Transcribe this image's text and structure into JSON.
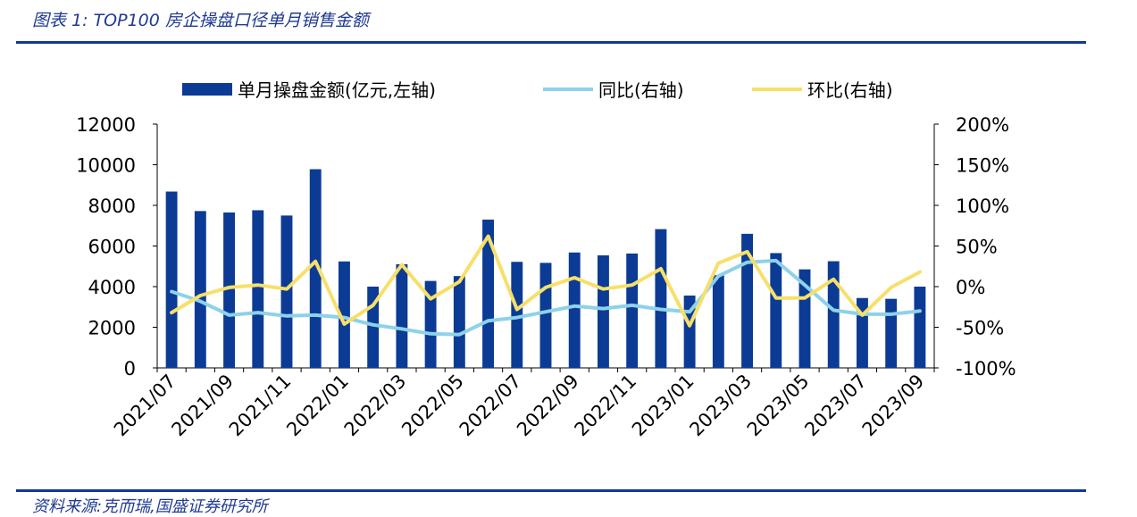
{
  "header": {
    "title": "图表 1:  TOP100 房企操盘口径单月销售金额"
  },
  "footer": {
    "source": "资料来源:克而瑞,国盛证券研究所"
  },
  "colors": {
    "bar": "#0b3b94",
    "yoy": "#8ed1ea",
    "mom": "#f7df6a",
    "rule": "#12389c",
    "title": "#1f3a93"
  },
  "chart_data": {
    "type": "bar",
    "title": "",
    "xlabel": "",
    "ylabel": "",
    "categories": [
      "2021/07",
      "2021/08",
      "2021/09",
      "2021/10",
      "2021/11",
      "2021/12",
      "2022/01",
      "2022/02",
      "2022/03",
      "2022/04",
      "2022/05",
      "2022/06",
      "2022/07",
      "2022/08",
      "2022/09",
      "2022/10",
      "2022/11",
      "2022/12",
      "2023/01",
      "2023/02",
      "2023/03",
      "2023/04",
      "2023/05",
      "2023/06",
      "2023/07",
      "2023/08",
      "2023/09"
    ],
    "tick_labels": [
      "2021/07",
      "2021/09",
      "2021/11",
      "2022/01",
      "2022/03",
      "2022/05",
      "2022/07",
      "2022/09",
      "2022/11",
      "2023/01",
      "2023/03",
      "2023/05",
      "2023/07",
      "2023/09"
    ],
    "ylim_left": [
      0,
      12000
    ],
    "ylim_right": [
      -100,
      200
    ],
    "left_ticks": [
      "0",
      "2000",
      "4000",
      "6000",
      "8000",
      "10000",
      "12000"
    ],
    "right_ticks": [
      "-100%",
      "-50%",
      "0%",
      "50%",
      "100%",
      "150%",
      "200%"
    ],
    "legend_position": "top",
    "grid": false,
    "series": [
      {
        "name": "单月操盘金额(亿元,左轴)",
        "type": "bar",
        "axis": "left",
        "values": [
          8680,
          7720,
          7650,
          7760,
          7500,
          9780,
          5240,
          4000,
          5100,
          4280,
          4520,
          7300,
          5220,
          5170,
          5680,
          5540,
          5630,
          6830,
          3560,
          4560,
          6600,
          5650,
          4850,
          5250,
          3440,
          3400,
          4000
        ]
      },
      {
        "name": "同比(右轴)",
        "type": "line",
        "axis": "right",
        "values": [
          -6,
          -18,
          -35,
          -32,
          -36,
          -35,
          -38,
          -47,
          -52,
          -58,
          -59,
          -42,
          -38,
          -31,
          -24,
          -27,
          -23,
          -28,
          -31,
          13,
          30,
          32,
          2,
          -29,
          -34,
          -34,
          -30
        ]
      },
      {
        "name": "环比(右轴)",
        "type": "line",
        "axis": "right",
        "values": [
          -32,
          -11,
          -1,
          2,
          -3,
          31,
          -46,
          -23,
          27,
          -15,
          6,
          62,
          -28,
          -1,
          11,
          -3,
          2,
          22,
          -48,
          29,
          43,
          -14,
          -14,
          9,
          -35,
          -1,
          18
        ]
      }
    ]
  }
}
